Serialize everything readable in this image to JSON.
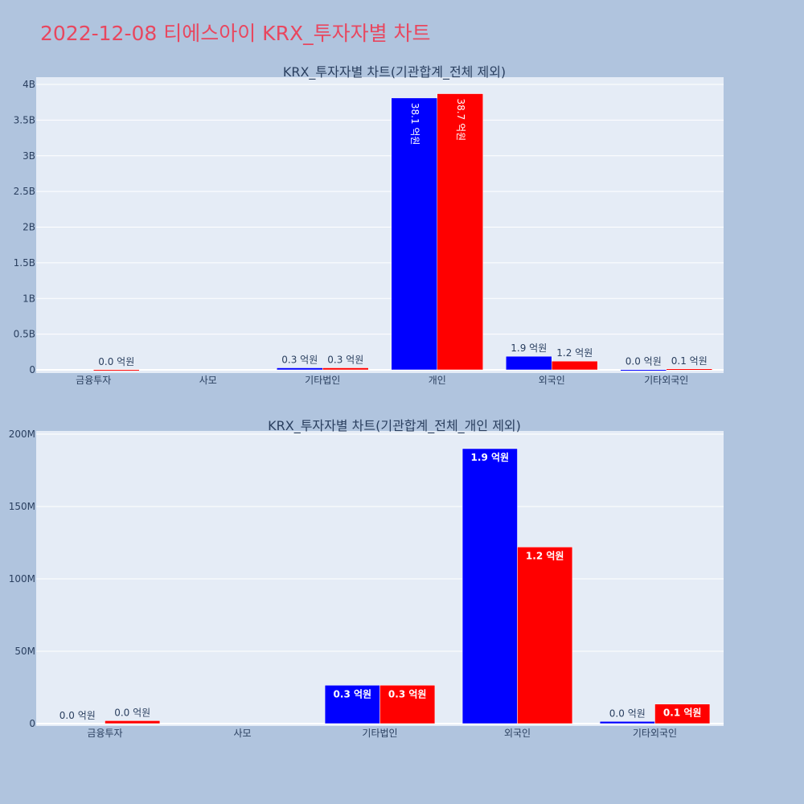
{
  "title": "2022-12-08 티에스아이 KRX_투자자별 차트",
  "colors": {
    "background": "#b0c4de",
    "plot_bg": "#e5ecf6",
    "title": "#e8475f",
    "series_a": "#0000ff",
    "series_b": "#ff0000"
  },
  "chart_data": [
    {
      "type": "bar",
      "title": "KRX_투자자별 차트(기관합계_전체 제외)",
      "categories": [
        "금융투자",
        "사모",
        "기타법인",
        "개인",
        "외국인",
        "기타외국인"
      ],
      "y_ticks": [
        {
          "value": 0,
          "label": "0"
        },
        {
          "value": 500000000,
          "label": "0.5B"
        },
        {
          "value": 1000000000,
          "label": "1B"
        },
        {
          "value": 1500000000,
          "label": "1.5B"
        },
        {
          "value": 2000000000,
          "label": "2B"
        },
        {
          "value": 2500000000,
          "label": "2.5B"
        },
        {
          "value": 3000000000,
          "label": "3B"
        },
        {
          "value": 3500000000,
          "label": "3.5B"
        },
        {
          "value": 4000000000,
          "label": "4B"
        }
      ],
      "ylim": [
        0,
        4000000000
      ],
      "grid": true,
      "series": [
        {
          "color": "#0000ff",
          "values": [
            0,
            0,
            28000000,
            3810000000,
            190000000,
            3000000
          ],
          "labels": [
            "",
            "",
            "0.3 억원",
            "38.1 억원",
            "1.9 억원",
            "0.0 억원"
          ]
        },
        {
          "color": "#ff0000",
          "values": [
            2000000,
            0,
            28000000,
            3870000000,
            122000000,
            14000000
          ],
          "labels": [
            "0.0 억원",
            "",
            "0.3 억원",
            "38.7 억원",
            "1.2 억원",
            "0.1 억원"
          ]
        }
      ]
    },
    {
      "type": "bar",
      "title": "KRX_투자자별 차트(기관합계_전체_개인 제외)",
      "categories": [
        "금융투자",
        "사모",
        "기타법인",
        "외국인",
        "기타외국인"
      ],
      "y_ticks": [
        {
          "value": 0,
          "label": "0"
        },
        {
          "value": 50000000,
          "label": "50M"
        },
        {
          "value": 100000000,
          "label": "100M"
        },
        {
          "value": 150000000,
          "label": "150M"
        },
        {
          "value": 200000000,
          "label": "200M"
        }
      ],
      "ylim": [
        0,
        200000000
      ],
      "grid": true,
      "series": [
        {
          "color": "#0000ff",
          "values": [
            0,
            0,
            26500000,
            190000000,
            1500000
          ],
          "labels": [
            "0.0 억원",
            "",
            "0.3 억원",
            "1.9 억원",
            "0.0 억원"
          ]
        },
        {
          "color": "#ff0000",
          "values": [
            2000000,
            0,
            26500000,
            122000000,
            13500000
          ],
          "labels": [
            "0.0 억원",
            "",
            "0.3 억원",
            "1.2 억원",
            "0.1 억원"
          ]
        }
      ]
    }
  ]
}
